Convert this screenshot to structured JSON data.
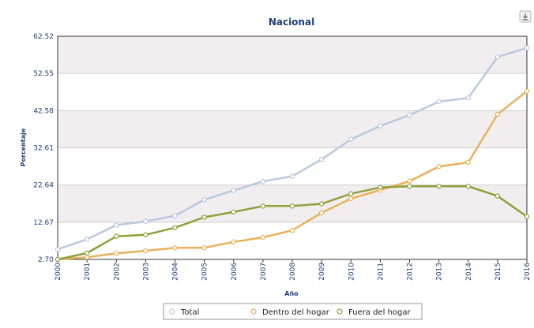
{
  "chart_data": {
    "type": "line",
    "title": "Nacional",
    "xlabel": "Año",
    "ylabel": "Porcentaje",
    "x": [
      "2000",
      "2001",
      "2002",
      "2003",
      "2004",
      "2005",
      "2006",
      "2007",
      "2008",
      "2009",
      "2010",
      "2011",
      "2012",
      "2013",
      "2014",
      "2015",
      "2016"
    ],
    "ylim": [
      2.7,
      62.52
    ],
    "yticks": [
      "2.70",
      "12.67",
      "22.64",
      "32.61",
      "42.58",
      "52.55",
      "62.52"
    ],
    "grid": true,
    "legend_position": "bottom",
    "series": [
      {
        "name": "Total",
        "color": "#b9c9de",
        "values": [
          5.4,
          8.1,
          11.9,
          12.9,
          14.4,
          18.7,
          21.2,
          23.6,
          25.0,
          29.5,
          34.9,
          38.5,
          41.4,
          45.0,
          46.0,
          57.0,
          59.4
        ]
      },
      {
        "name": "Dentro del hogar",
        "color": "#e8b25a",
        "values": [
          2.7,
          3.3,
          4.3,
          5.0,
          5.8,
          5.8,
          7.4,
          8.6,
          10.5,
          15.2,
          19.0,
          21.3,
          23.7,
          27.6,
          28.7,
          41.6,
          47.8
        ]
      },
      {
        "name": "Fuera del hogar",
        "color": "#8fa03a",
        "values": [
          2.7,
          4.4,
          8.9,
          9.3,
          11.2,
          14.0,
          15.4,
          17.0,
          17.0,
          17.6,
          20.3,
          22.0,
          22.3,
          22.3,
          22.3,
          19.7,
          14.2
        ]
      }
    ]
  },
  "toolbar": {
    "download_icon": "download-icon"
  }
}
